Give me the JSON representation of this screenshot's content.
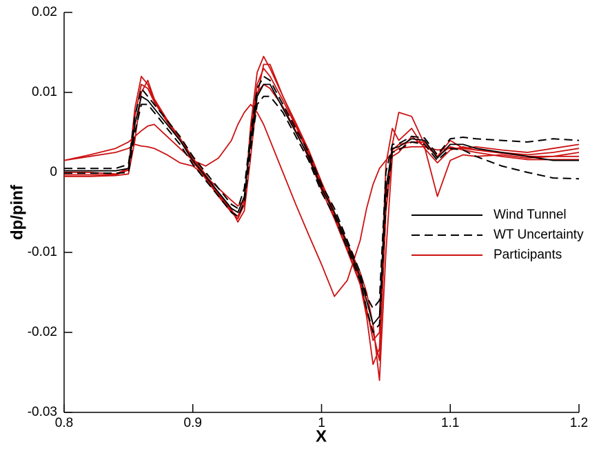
{
  "chart_data": {
    "type": "line",
    "x_label": "X",
    "y_label": "dp/pinf",
    "xlim": [
      0.8,
      1.2
    ],
    "ylim": [
      -0.03,
      0.02
    ],
    "xticks": [
      0.8,
      0.9,
      {
        "value": 1,
        "label": "1"
      },
      1.1,
      1.2
    ],
    "yticks": [
      -0.03,
      -0.02,
      -0.01,
      0,
      0.01,
      0.02
    ],
    "legend": "right",
    "x": [
      0.8,
      0.82,
      0.84,
      0.85,
      0.855,
      0.86,
      0.865,
      0.87,
      0.88,
      0.89,
      0.9,
      0.91,
      0.92,
      0.93,
      0.935,
      0.94,
      0.945,
      0.95,
      0.955,
      0.96,
      0.97,
      0.98,
      0.99,
      1.0,
      1.01,
      1.02,
      1.03,
      1.035,
      1.04,
      1.045,
      1.05,
      1.055,
      1.06,
      1.07,
      1.08,
      1.09,
      1.1,
      1.11,
      1.12,
      1.14,
      1.16,
      1.18,
      1.2
    ],
    "series": [
      {
        "name": "Wind Tunnel",
        "color": "#000000",
        "dashed": false,
        "lines": [
          [
            0.0002,
            0.0002,
            0.0002,
            0.0005,
            0.006,
            0.0095,
            0.009,
            0.008,
            0.006,
            0.004,
            0.0015,
            -0.0005,
            -0.0025,
            -0.0045,
            -0.005,
            -0.003,
            0.004,
            0.0095,
            0.011,
            0.011,
            0.008,
            0.005,
            0.002,
            -0.002,
            -0.005,
            -0.009,
            -0.013,
            -0.016,
            -0.019,
            -0.018,
            -0.002,
            0.003,
            0.0032,
            0.0042,
            0.004,
            0.0018,
            0.0035,
            0.0035,
            0.003,
            0.0025,
            0.002,
            0.0015,
            0.0015
          ]
        ]
      },
      {
        "name": "WT Uncertainty",
        "color": "#000000",
        "dashed": true,
        "lines": [
          [
            0.0005,
            0.0005,
            0.0005,
            0.001,
            0.007,
            0.0105,
            0.0095,
            0.0085,
            0.0065,
            0.0045,
            0.002,
            0,
            -0.002,
            -0.004,
            -0.0045,
            -0.002,
            0.005,
            0.0105,
            0.012,
            0.0115,
            0.0085,
            0.0055,
            0.0025,
            -0.0015,
            -0.0045,
            -0.0085,
            -0.0125,
            -0.0155,
            -0.017,
            -0.016,
            0,
            0.0035,
            0.0036,
            0.0045,
            0.0043,
            0.0022,
            0.0042,
            0.0044,
            0.0042,
            0.004,
            0.0038,
            0.0042,
            0.004
          ],
          [
            -0.0001,
            -0.0001,
            -0.0001,
            0,
            0.005,
            0.0085,
            0.0085,
            0.0075,
            0.0055,
            0.0035,
            0.001,
            -0.001,
            -0.003,
            -0.005,
            -0.0055,
            -0.0038,
            0.003,
            0.0085,
            0.0095,
            0.0095,
            0.0075,
            0.0045,
            0.0015,
            -0.0025,
            -0.0055,
            -0.0095,
            -0.0135,
            -0.017,
            -0.02,
            -0.019,
            -0.004,
            0.0025,
            0.0028,
            0.0038,
            0.0035,
            0.0015,
            0.003,
            0.0028,
            0.002,
            0.0008,
            0,
            -0.0007,
            -0.0008
          ]
        ]
      },
      {
        "name": "Participants",
        "color": "#cc1111",
        "dashed": false,
        "lines": [
          [
            0,
            0,
            -0.0002,
            0.0005,
            0.008,
            0.012,
            0.011,
            0.009,
            0.0065,
            0.0042,
            0.0015,
            -0.0008,
            -0.003,
            -0.005,
            -0.0058,
            -0.004,
            0.006,
            0.0125,
            0.0145,
            0.013,
            0.0095,
            0.006,
            0.0025,
            -0.0015,
            -0.0055,
            -0.0095,
            -0.014,
            -0.018,
            -0.024,
            -0.022,
            -0.003,
            0.0035,
            0.0075,
            0.007,
            0.0035,
            0.002,
            0.004,
            0.003,
            0.0032,
            0.0028,
            0.0025,
            0.003,
            0.0035
          ],
          [
            -0.0003,
            -0.0003,
            -0.0003,
            0.0003,
            0.007,
            0.011,
            0.0105,
            0.0088,
            0.0063,
            0.0041,
            0.0013,
            -0.0006,
            -0.0028,
            -0.0048,
            -0.0055,
            -0.0035,
            0.005,
            0.011,
            0.013,
            0.012,
            0.009,
            0.0058,
            0.0022,
            -0.0018,
            -0.0052,
            -0.009,
            -0.0135,
            -0.017,
            -0.021,
            -0.02,
            0.001,
            0.0055,
            0.004,
            0.0055,
            0.003,
            0.0012,
            0.0028,
            0.0032,
            0.0028,
            0.0025,
            0.0022,
            0.0025,
            0.003
          ],
          [
            -0.0005,
            -0.0005,
            -0.0004,
            -0.0002,
            0.004,
            0.01,
            0.0115,
            0.0092,
            0.0066,
            0.0043,
            0.0018,
            -0.0003,
            -0.0026,
            -0.0046,
            -0.0062,
            -0.0048,
            0.002,
            0.0095,
            0.0135,
            0.0135,
            0.0095,
            0.0062,
            0.0028,
            -0.0012,
            -0.005,
            -0.0088,
            -0.0125,
            -0.015,
            -0.019,
            -0.026,
            -0.01,
            0.002,
            0.0025,
            0.0045,
            0.0032,
            -0.003,
            0.0015,
            0.0022,
            0.002,
            0.0022,
            0.0018,
            0.002,
            0.0025
          ],
          [
            0.0015,
            0.002,
            0.0025,
            0.003,
            0.0035,
            0.0033,
            0.0032,
            0.003,
            0.0022,
            0.0012,
            0.0008,
            -0.0005,
            -0.002,
            -0.0035,
            -0.0042,
            -0.0035,
            0.0045,
            0.01,
            0.011,
            0.0105,
            0.0082,
            0.0052,
            0.0018,
            -0.0022,
            -0.0058,
            -0.0098,
            -0.014,
            -0.0175,
            -0.02,
            -0.0235,
            -0.005,
            0.0028,
            0.0035,
            0.0038,
            0.0038,
            0.002,
            0.0032,
            0.0028,
            0.0025,
            0.002,
            0.0016,
            0.0016,
            0.0016
          ],
          [
            0.0015,
            0.0022,
            0.003,
            0.0038,
            0.0045,
            0.0052,
            0.0058,
            0.006,
            0.0045,
            0.003,
            0.0015,
            0.0008,
            0.0018,
            0.004,
            0.006,
            0.0075,
            0.0085,
            0.0075,
            0.006,
            0.004,
            0,
            -0.004,
            -0.0078,
            -0.0115,
            -0.0155,
            -0.0135,
            -0.0085,
            -0.0045,
            -0.0015,
            0.0005,
            0.0015,
            0.0025,
            0.003,
            0.0032,
            0.0032,
            0.0028,
            0.003,
            0.003,
            0.0028,
            0.0024,
            0.002,
            0.002,
            0.002
          ]
        ]
      }
    ]
  }
}
